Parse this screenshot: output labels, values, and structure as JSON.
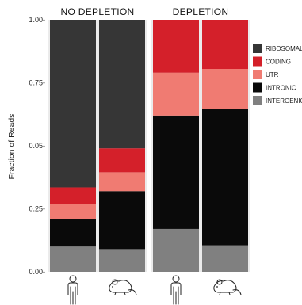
{
  "chart_data": {
    "type": "bar",
    "stacked": true,
    "ylabel": "Fraction of Reads",
    "ylim": [
      0,
      1
    ],
    "yticks": [
      "0.00-",
      "0.25-",
      "0.05-",
      "0.75-",
      "1.00-"
    ],
    "panels": [
      {
        "title": "NO DEPLETION",
        "categories": [
          "human",
          "mouse"
        ]
      },
      {
        "title": "DEPLETION",
        "categories": [
          "human",
          "mouse"
        ]
      }
    ],
    "series": [
      {
        "name": "INTERGENIC",
        "color": "#808080",
        "values": [
          0.1,
          0.09,
          0.17,
          0.105
        ]
      },
      {
        "name": "INTRONIC",
        "color": "#0a0a0a",
        "values": [
          0.11,
          0.23,
          0.45,
          0.54
        ]
      },
      {
        "name": "UTR",
        "color": "#f07b72",
        "values": [
          0.06,
          0.075,
          0.17,
          0.16
        ]
      },
      {
        "name": "CODING",
        "color": "#d4202a",
        "values": [
          0.065,
          0.095,
          0.21,
          0.195
        ]
      },
      {
        "name": "RIBOSOMAL",
        "color": "#363636",
        "values": [
          0.665,
          0.51,
          0.0,
          0.0
        ]
      }
    ],
    "legend_order": [
      "RIBOSOMAL",
      "CODING",
      "UTR",
      "INTRONIC",
      "INTERGENIC"
    ],
    "legend_position": "right",
    "x_icons": [
      "person-icon",
      "mouse-icon",
      "person-icon",
      "mouse-icon"
    ],
    "panel_background": "#ebebeb"
  }
}
